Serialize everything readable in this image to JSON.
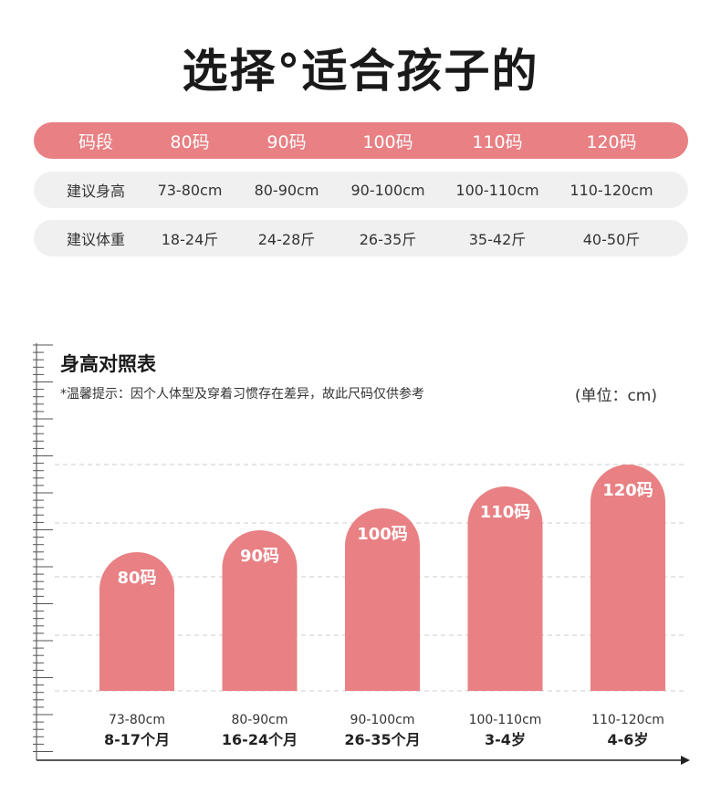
{
  "header": {
    "title": "选择°适合孩子的"
  },
  "size_table": {
    "header": [
      "码段",
      "80码",
      "90码",
      "100码",
      "110码",
      "120码"
    ],
    "rows": [
      [
        "建议身高",
        "73-80cm",
        "80-90cm",
        "90-100cm",
        "100-110cm",
        "110-120cm"
      ],
      [
        "建议体重",
        "18-24斤",
        "24-28斤",
        "26-35斤",
        "35-42斤",
        "40-50斤"
      ]
    ]
  },
  "chart_header": {
    "title": "身高对照表",
    "note": "*温馨提示：因个人体型及穿着习惯存在差异，故此尺码仅供参考",
    "unit": "(单位：cm)"
  },
  "colors": {
    "accent": "#e88084",
    "row_bg": "#f0f0f0",
    "grid": "#cccccc"
  },
  "chart_data": {
    "type": "bar",
    "categories": [
      "80码",
      "90码",
      "100码",
      "110码",
      "120码"
    ],
    "values": [
      80,
      90,
      100,
      110,
      120
    ],
    "x_labels": [
      [
        "73-80cm",
        "8-17个月"
      ],
      [
        "80-90cm",
        "16-24个月"
      ],
      [
        "90-100cm",
        "26-35个月"
      ],
      [
        "100-110cm",
        "3-4岁"
      ],
      [
        "110-120cm",
        "4-6岁"
      ]
    ],
    "grid": true
  }
}
